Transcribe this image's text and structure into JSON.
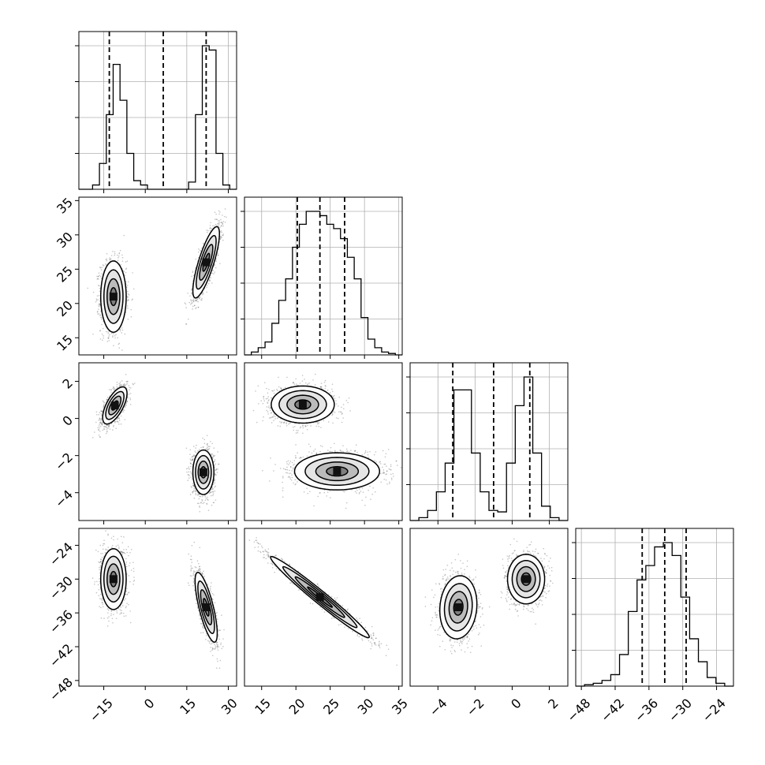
{
  "chart_data": {
    "type": "corner",
    "grid": true,
    "parameters": [
      {
        "range": [
          -24,
          33
        ],
        "ticks": [
          {
            "v": -15,
            "label": "−15"
          },
          {
            "v": 0,
            "label": "0"
          },
          {
            "v": 15,
            "label": "15"
          },
          {
            "v": 30,
            "label": "30"
          }
        ],
        "quantiles": [
          -13,
          6.5,
          22
        ],
        "hist": [
          0,
          0,
          0.03,
          0.18,
          0.52,
          0.87,
          0.62,
          0.25,
          0.06,
          0.03,
          0,
          0,
          0,
          0,
          0,
          0,
          0.05,
          0.52,
          1.0,
          0.97,
          0.25,
          0.03,
          0
        ]
      },
      {
        "range": [
          12.5,
          35.5
        ],
        "ticks": [
          {
            "v": 15,
            "label": "15"
          },
          {
            "v": 20,
            "label": "20"
          },
          {
            "v": 25,
            "label": "25"
          },
          {
            "v": 30,
            "label": "30"
          },
          {
            "v": 35,
            "label": "35"
          }
        ],
        "quantiles": [
          20.2,
          23.5,
          27.1
        ],
        "hist": [
          0,
          0.02,
          0.05,
          0.09,
          0.22,
          0.38,
          0.53,
          0.75,
          0.91,
          1.0,
          1.0,
          0.97,
          0.91,
          0.88,
          0.81,
          0.68,
          0.53,
          0.26,
          0.11,
          0.05,
          0.02,
          0.01,
          0
        ]
      },
      {
        "range": [
          -5.5,
          3
        ],
        "ticks": [
          {
            "v": -4,
            "label": "−4"
          },
          {
            "v": -2,
            "label": "−2"
          },
          {
            "v": 0,
            "label": "0"
          },
          {
            "v": 2,
            "label": "2"
          }
        ],
        "quantiles": [
          -3.2,
          -1.0,
          0.95
        ],
        "hist": [
          0,
          0.02,
          0.07,
          0.2,
          0.4,
          0.91,
          0.91,
          0.47,
          0.2,
          0.07,
          0.06,
          0.4,
          0.8,
          1.0,
          0.47,
          0.1,
          0.02,
          0
        ]
      },
      {
        "range": [
          -49,
          -21
        ],
        "ticks": [
          {
            "v": -48,
            "label": "−48"
          },
          {
            "v": -42,
            "label": "−42"
          },
          {
            "v": -36,
            "label": "−36"
          },
          {
            "v": -30,
            "label": "−30"
          },
          {
            "v": -24,
            "label": "−24"
          }
        ],
        "quantiles": [
          -37.2,
          -33.2,
          -29.4
        ],
        "hist": [
          0,
          0.01,
          0.02,
          0.04,
          0.08,
          0.22,
          0.52,
          0.74,
          0.84,
          0.97,
          1.0,
          0.91,
          0.62,
          0.33,
          0.17,
          0.06,
          0.02,
          0
        ]
      }
    ],
    "pairs": [
      {
        "row": 1,
        "col": 0,
        "modes": [
          {
            "mx": -11.5,
            "my": 21,
            "sx": 2.3,
            "sy": 2.6,
            "rho": 0,
            "w": 1
          },
          {
            "mx": 22,
            "my": 26,
            "sx": 2.4,
            "sy": 2.6,
            "rho": 0.8,
            "w": 1
          }
        ]
      },
      {
        "row": 2,
        "col": 0,
        "modes": [
          {
            "mx": -11,
            "my": 0.7,
            "sx": 2.2,
            "sy": 0.5,
            "rho": 0.65,
            "w": 1
          },
          {
            "mx": 21,
            "my": -2.9,
            "sx": 1.9,
            "sy": 0.6,
            "rho": 0,
            "w": 1
          }
        ]
      },
      {
        "row": 3,
        "col": 0,
        "modes": [
          {
            "mx": -11.5,
            "my": -30,
            "sx": 2.3,
            "sy": 2.7,
            "rho": 0,
            "w": 1
          },
          {
            "mx": 22,
            "my": -35,
            "sx": 2.0,
            "sy": 3.1,
            "rho": -0.75,
            "w": 1
          }
        ]
      },
      {
        "row": 2,
        "col": 1,
        "modes": [
          {
            "mx": 21,
            "my": 0.75,
            "sx": 2.3,
            "sy": 0.5,
            "rho": 0,
            "w": 1
          },
          {
            "mx": 26,
            "my": -2.85,
            "sx": 3.1,
            "sy": 0.5,
            "rho": 0,
            "w": 1
          }
        ]
      },
      {
        "row": 3,
        "col": 1,
        "modes": [
          {
            "mx": 23.5,
            "my": -33.2,
            "sx": 3.6,
            "sy": 3.6,
            "rho": -0.98,
            "w": 1
          }
        ]
      },
      {
        "row": 3,
        "col": 2,
        "modes": [
          {
            "mx": -2.9,
            "my": -35,
            "sx": 0.5,
            "sy": 2.8,
            "rho": 0.1,
            "w": 1
          },
          {
            "mx": 0.75,
            "my": -30,
            "sx": 0.5,
            "sy": 2.2,
            "rho": 0,
            "w": 1
          }
        ]
      }
    ],
    "contour_levels_sigma": [
      0.5,
      1.0,
      1.5,
      2.0
    ]
  }
}
